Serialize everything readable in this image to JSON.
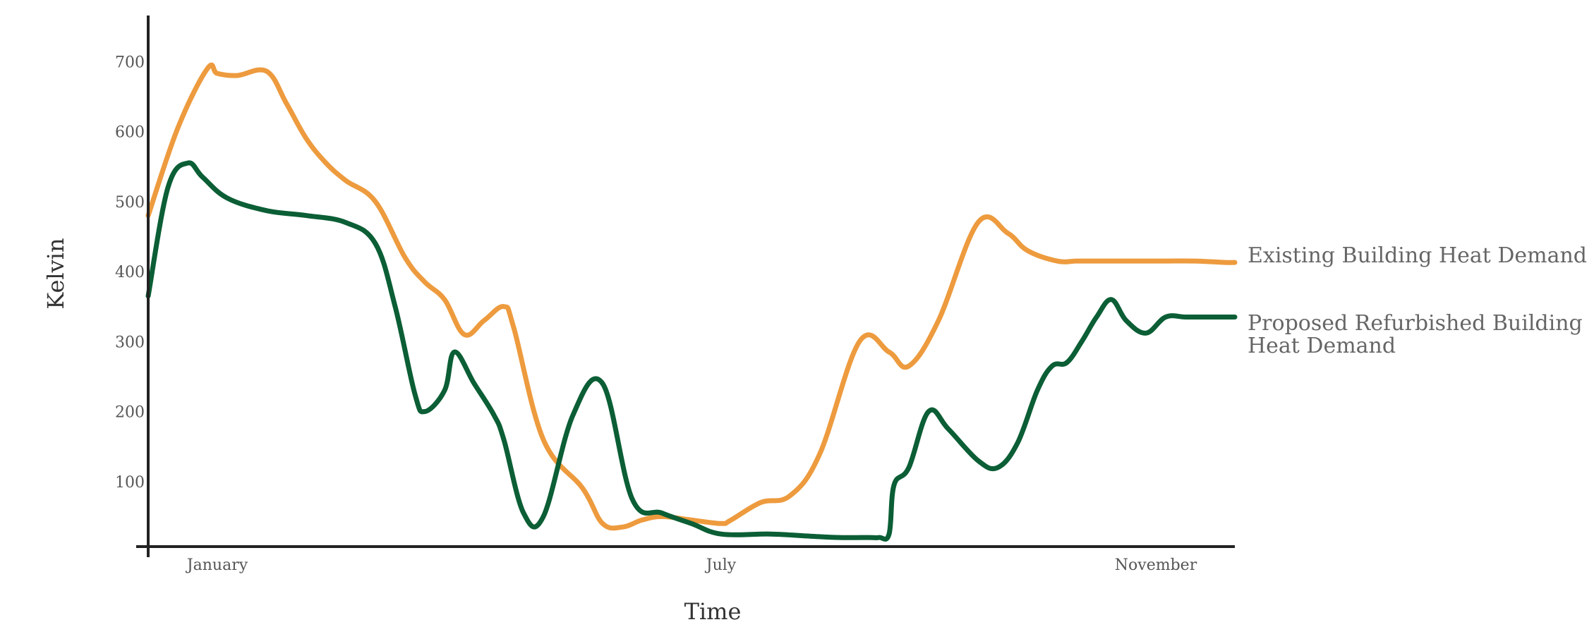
{
  "chart_data": {
    "type": "line",
    "title": "",
    "xlabel": "Time",
    "ylabel": "Kelvin",
    "ylim": [
      0,
      760
    ],
    "grid": false,
    "legend_placement": "right, at line ends",
    "yticks": [
      100,
      200,
      300,
      400,
      500,
      600,
      700
    ],
    "ytick_labels": [
      "100",
      "200",
      "300",
      "400",
      "500",
      "600",
      "700"
    ],
    "xticks": [
      {
        "label": "January",
        "month": 1.7
      },
      {
        "label": "July",
        "month": 6.8
      },
      {
        "label": "November",
        "month": 11.2
      }
    ],
    "x_unit": "month of year",
    "xlim": [
      1,
      12
    ],
    "series": [
      {
        "name": "Existing Building Heat Demand",
        "color": "#ED9B3E",
        "x": [
          1.0,
          1.3,
          1.6,
          1.7,
          1.9,
          2.2,
          2.4,
          2.6,
          2.8,
          3.0,
          3.3,
          3.6,
          3.8,
          4.0,
          4.2,
          4.4,
          4.6,
          4.7,
          5.0,
          5.4,
          5.6,
          5.8,
          6.0,
          6.2,
          6.5,
          6.8,
          6.9,
          7.2,
          7.5,
          7.8,
          8.2,
          8.5,
          8.7,
          9.0,
          9.4,
          9.7,
          9.9,
          10.2,
          10.4,
          10.6,
          10.8,
          11.0,
          11.3,
          11.6,
          11.9,
          12.0
        ],
        "values": [
          480,
          605,
          690,
          683,
          680,
          686,
          640,
          590,
          555,
          530,
          500,
          420,
          385,
          360,
          310,
          330,
          350,
          320,
          160,
          90,
          40,
          35,
          45,
          50,
          45,
          40,
          45,
          70,
          80,
          140,
          300,
          285,
          265,
          330,
          470,
          455,
          430,
          415,
          415,
          415,
          415,
          415,
          415,
          415,
          413,
          413
        ],
        "end_label": "Existing Building Heat Demand"
      },
      {
        "name": "Proposed Refurbished Building Heat Demand",
        "color": "#0B5E35",
        "x": [
          1.0,
          1.2,
          1.4,
          1.55,
          1.8,
          2.2,
          2.6,
          3.0,
          3.3,
          3.5,
          3.7,
          3.8,
          4.0,
          4.1,
          4.3,
          4.5,
          4.6,
          4.8,
          5.0,
          5.3,
          5.6,
          5.9,
          6.2,
          6.5,
          6.8,
          7.3,
          7.7,
          8.0,
          8.3,
          8.4,
          8.5,
          8.55,
          8.7,
          8.9,
          9.1,
          9.4,
          9.6,
          9.8,
          10.0,
          10.15,
          10.3,
          10.45,
          10.6,
          10.75,
          10.9,
          11.1,
          11.3,
          11.5,
          11.7,
          11.9,
          12.0
        ],
        "values": [
          365,
          520,
          555,
          535,
          505,
          487,
          480,
          470,
          440,
          350,
          225,
          200,
          230,
          285,
          240,
          195,
          160,
          55,
          50,
          195,
          240,
          75,
          55,
          40,
          25,
          25,
          22,
          20,
          20,
          20,
          25,
          95,
          120,
          200,
          175,
          130,
          120,
          155,
          230,
          265,
          270,
          300,
          335,
          360,
          330,
          312,
          335,
          335,
          335,
          335,
          335
        ],
        "end_label_lines": [
          "Proposed Refurbished Building",
          "Heat Demand"
        ]
      }
    ]
  }
}
